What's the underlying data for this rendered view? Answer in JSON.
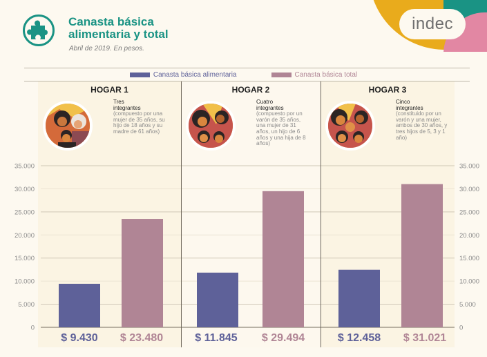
{
  "header": {
    "title_line1": "Canasta básica",
    "title_line2": "alimentaria y total",
    "subtitle": "Abril de 2019. En pesos.",
    "section_icon": "puzzle-piece-icon",
    "brand": "indec"
  },
  "colors": {
    "brand_teal": "#1a9384",
    "brand_yellow": "#e9ab1c",
    "brand_pink": "#e287a3",
    "series_alimentaria": "#5e6199",
    "series_total": "#b08595"
  },
  "legend": [
    {
      "label": "Canasta básica alimentaria",
      "color": "#5e6199"
    },
    {
      "label": "Canasta básica total",
      "color": "#b08595"
    }
  ],
  "hogares": [
    {
      "title": "HOGAR 1",
      "heading1": "Tres",
      "heading2": "integrantes",
      "detail": "(compuesto por una mujer de 35 años, su hijo de 18 años y su madre de 61 años)",
      "value_alimentaria_label": "$ 9.430",
      "value_total_label": "$ 23.480"
    },
    {
      "title": "HOGAR 2",
      "heading1": "Cuatro",
      "heading2": "integrantes",
      "detail": "(compuesto por un varón de 35 años, una mujer de 31 años, un hijo de 6 años y una hija de 8 años)",
      "value_alimentaria_label": "$ 11.845",
      "value_total_label": "$ 29.494"
    },
    {
      "title": "HOGAR 3",
      "heading1": "Cinco",
      "heading2": "integrantes",
      "detail": "(constituido por un varón y una mujer, ambos de 30 años, y tres hijos de 5, 3 y 1 año)",
      "value_alimentaria_label": "$ 12.458",
      "value_total_label": "$ 31.021"
    }
  ],
  "chart_data": {
    "type": "bar",
    "title": "Canasta básica alimentaria y total",
    "subtitle": "Abril de 2019. En pesos.",
    "categories": [
      "HOGAR 1",
      "HOGAR 2",
      "HOGAR 3"
    ],
    "series": [
      {
        "name": "Canasta básica alimentaria",
        "values": [
          9430,
          11845,
          12458
        ]
      },
      {
        "name": "Canasta básica total",
        "values": [
          23480,
          29494,
          31021
        ]
      }
    ],
    "xlabel": "",
    "ylabel": "",
    "ylim": [
      0,
      35000
    ],
    "yticks": [
      0,
      5000,
      10000,
      15000,
      20000,
      25000,
      30000,
      35000
    ],
    "ytick_labels": [
      "0",
      "5.000",
      "10.000",
      "15.000",
      "20.000",
      "25.000",
      "30.000",
      "35.000"
    ],
    "grid": true,
    "legend_position": "top-center",
    "axes": "both-sides"
  }
}
